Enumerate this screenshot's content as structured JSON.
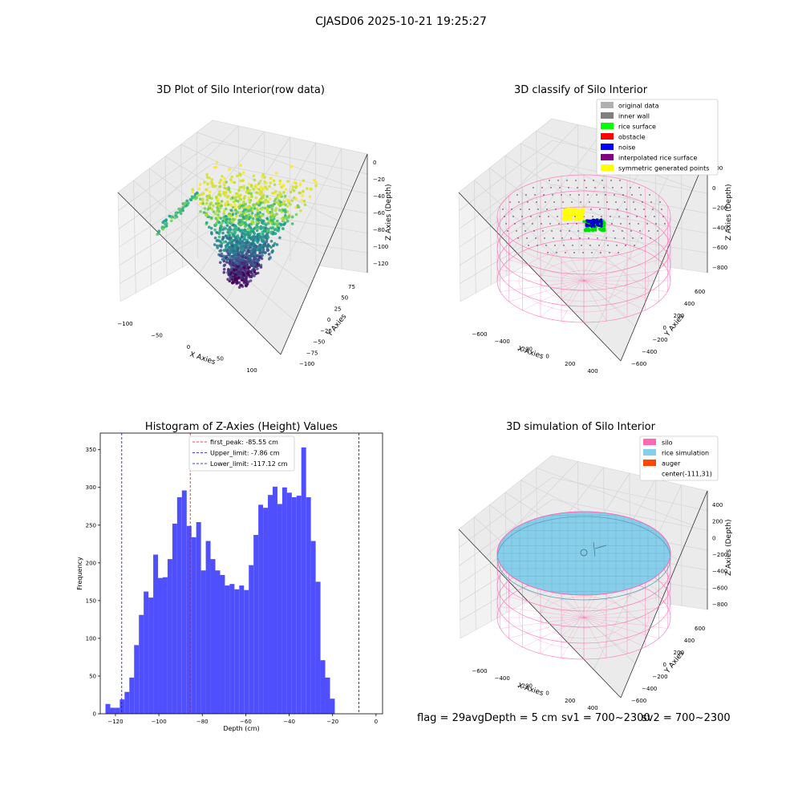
{
  "suptitle": "CJASD06 2025-10-21 19:25:27",
  "colors": {
    "hist_bar": "#4f4ffe",
    "peak_line": "#ff0000",
    "limit_line": "#0000ff",
    "pane_light": "#f2f2f2",
    "pane_mid": "#ebebeb",
    "silo": "#ff69b4",
    "rice": "#87ceeb",
    "auger": "#ff4500"
  },
  "panel_tl": {
    "title": "3D Plot of Silo Interior(row data)",
    "xlabel": "X Axies",
    "ylabel": "Y Axies",
    "zlabel": "Z Axies (Depth)",
    "xticks": [
      "−100",
      "−50",
      "0",
      "50",
      "100"
    ],
    "yticks": [
      "75",
      "50",
      "25",
      "0",
      "−25",
      "−50",
      "−75",
      "−100"
    ],
    "zticks": [
      "0",
      "−20",
      "−40",
      "−60",
      "−80",
      "−100",
      "−120"
    ],
    "colormap": "viridis"
  },
  "panel_tr": {
    "title": "3D classify of Silo Interior",
    "xlabel": "X Axies",
    "ylabel": "Y Axies",
    "zlabel": "Z Axies (Depth)",
    "xticks": [
      "−600",
      "−400",
      "−200",
      "0",
      "200",
      "400"
    ],
    "yticks": [
      "600",
      "400",
      "200",
      "0",
      "−200",
      "−400",
      "−600"
    ],
    "zticks": [
      "200",
      "0",
      "−200",
      "−400",
      "−600",
      "−800"
    ],
    "legend": [
      {
        "label": "original data",
        "color": "#b0b0b0"
      },
      {
        "label": "inner wall",
        "color": "#808080"
      },
      {
        "label": "rice surface",
        "color": "#00ff00"
      },
      {
        "label": "obstacle",
        "color": "#ff0000"
      },
      {
        "label": "noise",
        "color": "#0000ff"
      },
      {
        "label": "interpolated rice surface",
        "color": "#800080"
      },
      {
        "label": "symmetric generated points",
        "color": "#ffff00"
      }
    ]
  },
  "panel_br": {
    "title": "3D simulation of Silo Interior",
    "xlabel": "X Axies",
    "ylabel": "Y Axies",
    "zlabel": "Z Axies (Depth)",
    "xticks": [
      "−600",
      "−400",
      "−200",
      "0",
      "200",
      "400"
    ],
    "yticks": [
      "600",
      "400",
      "200",
      "0",
      "−200",
      "−400",
      "−600"
    ],
    "zticks": [
      "400",
      "200",
      "0",
      "−200",
      "−400",
      "−600",
      "−800"
    ],
    "legend": [
      {
        "label": "silo",
        "color": "#ff69b4"
      },
      {
        "label": "rice simulation",
        "color": "#87ceeb"
      },
      {
        "label": "auger",
        "color": "#ff4500"
      },
      {
        "label": "center(-111,31)",
        "color": ""
      }
    ]
  },
  "status": {
    "flag": "flag = 29",
    "avg": "avgDepth = 5 cm",
    "sv1": "sv1 = 700~2300",
    "sv2": "sv2 = 700~2300"
  },
  "chart_data": [
    {
      "type": "bar",
      "title": "Histogram of Z-Axies (Height) Values",
      "xlabel": "Depth (cm)",
      "ylabel": "Frequency",
      "xlim": [
        -127,
        3
      ],
      "ylim": [
        0,
        372
      ],
      "xticks": [
        -120,
        -100,
        -80,
        -60,
        -40,
        -20,
        0
      ],
      "yticks": [
        0,
        50,
        100,
        150,
        200,
        250,
        300,
        350
      ],
      "bin_start": -124.6,
      "bin_width": 2.2,
      "values": [
        13,
        8,
        8,
        19,
        29,
        48,
        91,
        131,
        162,
        154,
        211,
        180,
        181,
        205,
        252,
        287,
        296,
        249,
        234,
        254,
        190,
        229,
        205,
        190,
        184,
        170,
        172,
        165,
        170,
        164,
        197,
        237,
        277,
        273,
        290,
        301,
        278,
        300,
        293,
        287,
        289,
        353,
        287,
        229,
        175,
        71,
        48,
        20
      ],
      "lines": [
        {
          "label": "first_peak: -85.55 cm",
          "x": -85.55,
          "color": "#ff0000"
        },
        {
          "label": "Upper_limit: -7.86 cm",
          "x": -7.86,
          "color": "#0000ff"
        },
        {
          "label": "Lower_limit: -117.12 cm",
          "x": -117.12,
          "color": "#0000ff"
        }
      ]
    }
  ]
}
